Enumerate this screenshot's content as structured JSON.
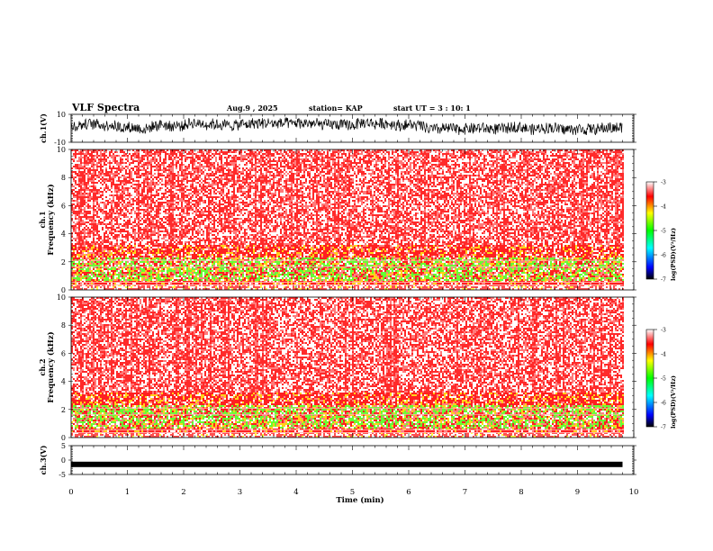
{
  "header": {
    "title": "VLF Spectra",
    "date": "Aug.9 , 2025",
    "station": "station= KAP",
    "start_ut": "start UT = 3 : 10: 1"
  },
  "chart_data": [
    {
      "type": "line",
      "name": "ch1-waveform",
      "ylabel": "ch.1(V)",
      "ylim": [
        -10,
        10
      ],
      "yticklabels": [
        "10",
        "-10"
      ],
      "xlim": [
        0,
        10
      ],
      "data_end_min": 9.8,
      "typical_range": [
        -3,
        5
      ]
    },
    {
      "type": "heatmap",
      "name": "ch1-spectrogram",
      "ylabel_line1": "ch.1",
      "ylabel_line2": "Frequency (kHz)",
      "ylim": [
        0,
        10
      ],
      "yticklabels": [
        "0",
        "2",
        "4",
        "6",
        "8",
        "10"
      ],
      "xlim": [
        0,
        10
      ],
      "colorbar": {
        "label": "log(PSD)(V²/Hz)",
        "ticks": [
          "-3",
          "-4",
          "-5",
          "-6",
          "-7"
        ],
        "range": [
          -7,
          -3
        ]
      }
    },
    {
      "type": "heatmap",
      "name": "ch2-spectrogram",
      "ylabel_line1": "ch.2",
      "ylabel_line2": "Frequency (kHz)",
      "ylim": [
        0,
        10
      ],
      "yticklabels": [
        "0",
        "2",
        "4",
        "6",
        "8",
        "10"
      ],
      "xlim": [
        0,
        10
      ],
      "colorbar": {
        "label": "log(PSD)(V²/Hz)",
        "ticks": [
          "-3",
          "-4",
          "-5",
          "-6",
          "-7"
        ],
        "range": [
          -7,
          -3
        ]
      }
    },
    {
      "type": "line",
      "name": "ch3-waveform",
      "ylabel": "ch.3(V)",
      "ylim": [
        -5,
        5
      ],
      "yticklabels": [
        "5",
        "0",
        "-5"
      ],
      "xlim": [
        0,
        10
      ],
      "baseline_v": -1.5,
      "data_end_min": 9.8
    }
  ],
  "x_axis": {
    "label": "Time (min)",
    "ticklabels": [
      "0",
      "1",
      "2",
      "3",
      "4",
      "5",
      "6",
      "7",
      "8",
      "9",
      "10"
    ]
  }
}
